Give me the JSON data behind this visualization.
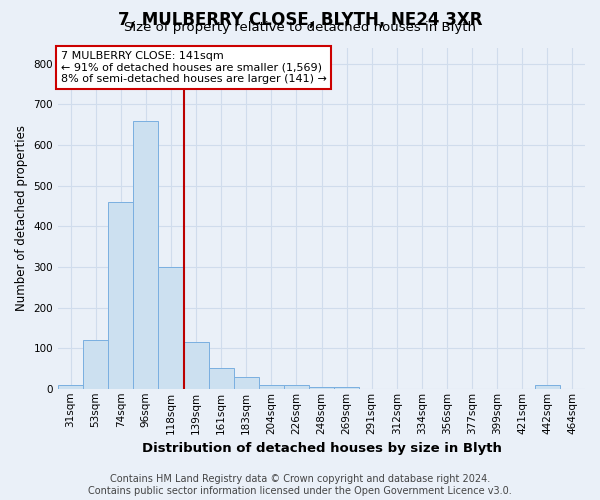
{
  "title": "7, MULBERRY CLOSE, BLYTH, NE24 3XR",
  "subtitle": "Size of property relative to detached houses in Blyth",
  "xlabel": "Distribution of detached houses by size in Blyth",
  "ylabel": "Number of detached properties",
  "bar_labels": [
    "31sqm",
    "53sqm",
    "74sqm",
    "96sqm",
    "118sqm",
    "139sqm",
    "161sqm",
    "183sqm",
    "204sqm",
    "226sqm",
    "248sqm",
    "269sqm",
    "291sqm",
    "312sqm",
    "334sqm",
    "356sqm",
    "377sqm",
    "399sqm",
    "421sqm",
    "442sqm",
    "464sqm"
  ],
  "bar_values": [
    10,
    120,
    460,
    660,
    300,
    115,
    50,
    30,
    10,
    10,
    5,
    5,
    0,
    0,
    0,
    0,
    0,
    0,
    0,
    10,
    0
  ],
  "bar_color": "#cce0f0",
  "bar_edge_color": "#7aafe0",
  "red_line_index": 5,
  "property_line_color": "#bb0000",
  "annotation_text": "7 MULBERRY CLOSE: 141sqm\n← 91% of detached houses are smaller (1,569)\n8% of semi-detached houses are larger (141) →",
  "annotation_box_color": "#cc0000",
  "ylim": [
    0,
    840
  ],
  "yticks": [
    0,
    100,
    200,
    300,
    400,
    500,
    600,
    700,
    800
  ],
  "footer": "Contains HM Land Registry data © Crown copyright and database right 2024.\nContains public sector information licensed under the Open Government Licence v3.0.",
  "bg_color": "#eaf0f8",
  "grid_color": "#d0dcec",
  "title_fontsize": 12,
  "subtitle_fontsize": 9.5,
  "annotation_fontsize": 8,
  "ylabel_fontsize": 8.5,
  "xlabel_fontsize": 9.5,
  "footer_fontsize": 7,
  "tick_fontsize": 7.5
}
